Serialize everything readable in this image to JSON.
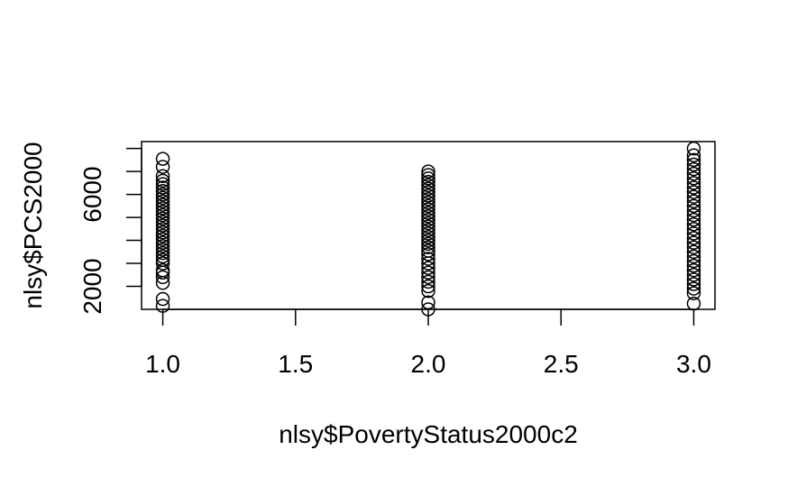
{
  "chart_data": {
    "type": "scatter",
    "xlabel": "nlsy$PovertyStatus2000c2",
    "ylabel": "nlsy$PCS2000",
    "xlim": [
      0.92,
      3.08
    ],
    "ylim": [
      1000,
      8300
    ],
    "x_ticks": [
      1.0,
      1.5,
      2.0,
      2.5,
      3.0
    ],
    "x_tick_labels": [
      "1.0",
      "1.5",
      "2.0",
      "2.5",
      "3.0"
    ],
    "y_ticks": [
      2000,
      3000,
      4000,
      5000,
      6000,
      7000,
      8000
    ],
    "y_tick_labels": [
      "2000",
      "",
      "",
      "",
      "6000",
      "",
      ""
    ],
    "grid": false,
    "series": [
      {
        "values": [
          {
            "x": 1,
            "y": 1150
          },
          {
            "x": 1,
            "y": 1450
          },
          {
            "x": 1,
            "y": 2150
          },
          {
            "x": 1,
            "y": 2400
          },
          {
            "x": 1,
            "y": 2600
          },
          {
            "x": 1,
            "y": 2700
          },
          {
            "x": 1,
            "y": 3000
          },
          {
            "x": 1,
            "y": 3150
          },
          {
            "x": 1,
            "y": 3300
          },
          {
            "x": 1,
            "y": 3450
          },
          {
            "x": 1,
            "y": 3600
          },
          {
            "x": 1,
            "y": 3750
          },
          {
            "x": 1,
            "y": 3900
          },
          {
            "x": 1,
            "y": 4050
          },
          {
            "x": 1,
            "y": 4200
          },
          {
            "x": 1,
            "y": 4350
          },
          {
            "x": 1,
            "y": 4500
          },
          {
            "x": 1,
            "y": 4650
          },
          {
            "x": 1,
            "y": 4800
          },
          {
            "x": 1,
            "y": 4950
          },
          {
            "x": 1,
            "y": 5100
          },
          {
            "x": 1,
            "y": 5250
          },
          {
            "x": 1,
            "y": 5400
          },
          {
            "x": 1,
            "y": 5550
          },
          {
            "x": 1,
            "y": 5700
          },
          {
            "x": 1,
            "y": 5850
          },
          {
            "x": 1,
            "y": 6000
          },
          {
            "x": 1,
            "y": 6150
          },
          {
            "x": 1,
            "y": 6300
          },
          {
            "x": 1,
            "y": 6450
          },
          {
            "x": 1,
            "y": 6600
          },
          {
            "x": 1,
            "y": 6800
          },
          {
            "x": 1,
            "y": 7200
          },
          {
            "x": 1,
            "y": 7550
          },
          {
            "x": 2,
            "y": 1000
          },
          {
            "x": 2,
            "y": 1300
          },
          {
            "x": 2,
            "y": 1800
          },
          {
            "x": 2,
            "y": 2000
          },
          {
            "x": 2,
            "y": 2200
          },
          {
            "x": 2,
            "y": 2400
          },
          {
            "x": 2,
            "y": 2600
          },
          {
            "x": 2,
            "y": 2800
          },
          {
            "x": 2,
            "y": 3000
          },
          {
            "x": 2,
            "y": 3200
          },
          {
            "x": 2,
            "y": 3400
          },
          {
            "x": 2,
            "y": 3550
          },
          {
            "x": 2,
            "y": 3700
          },
          {
            "x": 2,
            "y": 3850
          },
          {
            "x": 2,
            "y": 4000
          },
          {
            "x": 2,
            "y": 4150
          },
          {
            "x": 2,
            "y": 4300
          },
          {
            "x": 2,
            "y": 4450
          },
          {
            "x": 2,
            "y": 4600
          },
          {
            "x": 2,
            "y": 4750
          },
          {
            "x": 2,
            "y": 4900
          },
          {
            "x": 2,
            "y": 5050
          },
          {
            "x": 2,
            "y": 5200
          },
          {
            "x": 2,
            "y": 5350
          },
          {
            "x": 2,
            "y": 5500
          },
          {
            "x": 2,
            "y": 5650
          },
          {
            "x": 2,
            "y": 5800
          },
          {
            "x": 2,
            "y": 5950
          },
          {
            "x": 2,
            "y": 6100
          },
          {
            "x": 2,
            "y": 6250
          },
          {
            "x": 2,
            "y": 6400
          },
          {
            "x": 2,
            "y": 6550
          },
          {
            "x": 2,
            "y": 6700
          },
          {
            "x": 2,
            "y": 6850
          },
          {
            "x": 2,
            "y": 7000
          },
          {
            "x": 3,
            "y": 1250
          },
          {
            "x": 3,
            "y": 1700
          },
          {
            "x": 3,
            "y": 1900
          },
          {
            "x": 3,
            "y": 2100
          },
          {
            "x": 3,
            "y": 2300
          },
          {
            "x": 3,
            "y": 2500
          },
          {
            "x": 3,
            "y": 2700
          },
          {
            "x": 3,
            "y": 2900
          },
          {
            "x": 3,
            "y": 3100
          },
          {
            "x": 3,
            "y": 3300
          },
          {
            "x": 3,
            "y": 3500
          },
          {
            "x": 3,
            "y": 3700
          },
          {
            "x": 3,
            "y": 3900
          },
          {
            "x": 3,
            "y": 4100
          },
          {
            "x": 3,
            "y": 4300
          },
          {
            "x": 3,
            "y": 4500
          },
          {
            "x": 3,
            "y": 4700
          },
          {
            "x": 3,
            "y": 4900
          },
          {
            "x": 3,
            "y": 5100
          },
          {
            "x": 3,
            "y": 5300
          },
          {
            "x": 3,
            "y": 5500
          },
          {
            "x": 3,
            "y": 5700
          },
          {
            "x": 3,
            "y": 5900
          },
          {
            "x": 3,
            "y": 6100
          },
          {
            "x": 3,
            "y": 6300
          },
          {
            "x": 3,
            "y": 6500
          },
          {
            "x": 3,
            "y": 6700
          },
          {
            "x": 3,
            "y": 6900
          },
          {
            "x": 3,
            "y": 7100
          },
          {
            "x": 3,
            "y": 7300
          },
          {
            "x": 3,
            "y": 7500
          },
          {
            "x": 3,
            "y": 7700
          },
          {
            "x": 3,
            "y": 8000
          }
        ]
      }
    ]
  }
}
